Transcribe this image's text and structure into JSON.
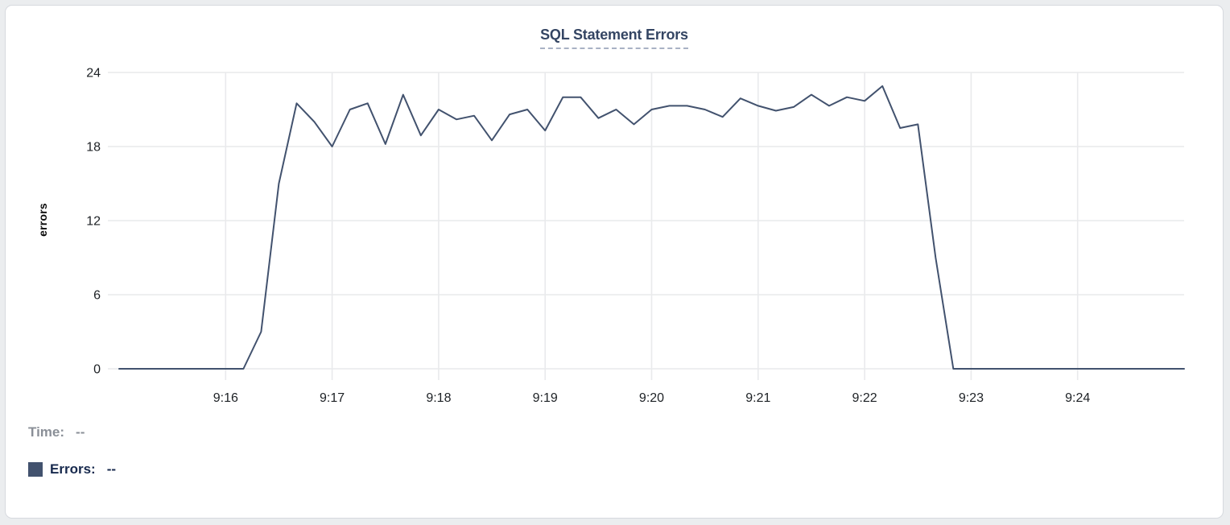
{
  "chart_data": {
    "type": "line",
    "title": "SQL Statement Errors",
    "xlabel": "",
    "ylabel": "errors",
    "ylim": [
      0,
      24
    ],
    "yticks": [
      0,
      6,
      12,
      18,
      24
    ],
    "xticks": [
      "9:16",
      "9:17",
      "9:18",
      "9:19",
      "9:20",
      "9:21",
      "9:22",
      "9:23",
      "9:24"
    ],
    "grid": true,
    "legend_position": "bottom-left",
    "x_interval_seconds": 10,
    "x_times": [
      "9:15:00",
      "9:15:10",
      "9:15:20",
      "9:15:30",
      "9:15:40",
      "9:15:50",
      "9:16:00",
      "9:16:10",
      "9:16:20",
      "9:16:30",
      "9:16:40",
      "9:16:50",
      "9:17:00",
      "9:17:10",
      "9:17:20",
      "9:17:30",
      "9:17:40",
      "9:17:50",
      "9:18:00",
      "9:18:10",
      "9:18:20",
      "9:18:30",
      "9:18:40",
      "9:18:50",
      "9:19:00",
      "9:19:10",
      "9:19:20",
      "9:19:30",
      "9:19:40",
      "9:19:50",
      "9:20:00",
      "9:20:10",
      "9:20:20",
      "9:20:30",
      "9:20:40",
      "9:20:50",
      "9:21:00",
      "9:21:10",
      "9:21:20",
      "9:21:30",
      "9:21:40",
      "9:21:50",
      "9:22:00",
      "9:22:10",
      "9:22:20",
      "9:22:30",
      "9:22:40",
      "9:22:50",
      "9:23:00",
      "9:23:10",
      "9:23:20",
      "9:23:30",
      "9:23:40",
      "9:23:50",
      "9:24:00",
      "9:24:10",
      "9:24:20",
      "9:24:30",
      "9:24:40",
      "9:24:50",
      "9:25:00"
    ],
    "series": [
      {
        "name": "Errors",
        "color": "#42526e",
        "values": [
          0,
          0,
          0,
          0,
          0,
          0,
          0,
          0,
          3,
          15,
          21.5,
          20,
          18,
          21,
          21.5,
          18.2,
          22.2,
          18.9,
          21,
          20.2,
          20.5,
          18.5,
          20.6,
          21,
          19.3,
          22,
          22,
          20.3,
          21,
          19.8,
          21,
          21.3,
          21.3,
          21,
          20.4,
          21.9,
          21.3,
          20.9,
          21.2,
          22.2,
          21.3,
          22,
          21.7,
          22.9,
          19.5,
          19.8,
          9,
          0,
          0,
          0,
          0,
          0,
          0,
          0,
          0,
          0,
          0,
          0,
          0,
          0,
          0
        ]
      }
    ]
  },
  "legend": {
    "time_label": "Time:",
    "time_value": "--",
    "errors_label": "Errors:",
    "errors_value": "--",
    "swatch_color": "#42526e"
  },
  "colors": {
    "title": "#344563",
    "title_underline": "#a9b2c4",
    "gridline": "#e9eaec",
    "tick_text": "#1d2125",
    "line": "#42526e",
    "card_border": "#d6d9de",
    "time_label_gray": "#8a8f97",
    "errors_label_navy": "#17294d"
  }
}
